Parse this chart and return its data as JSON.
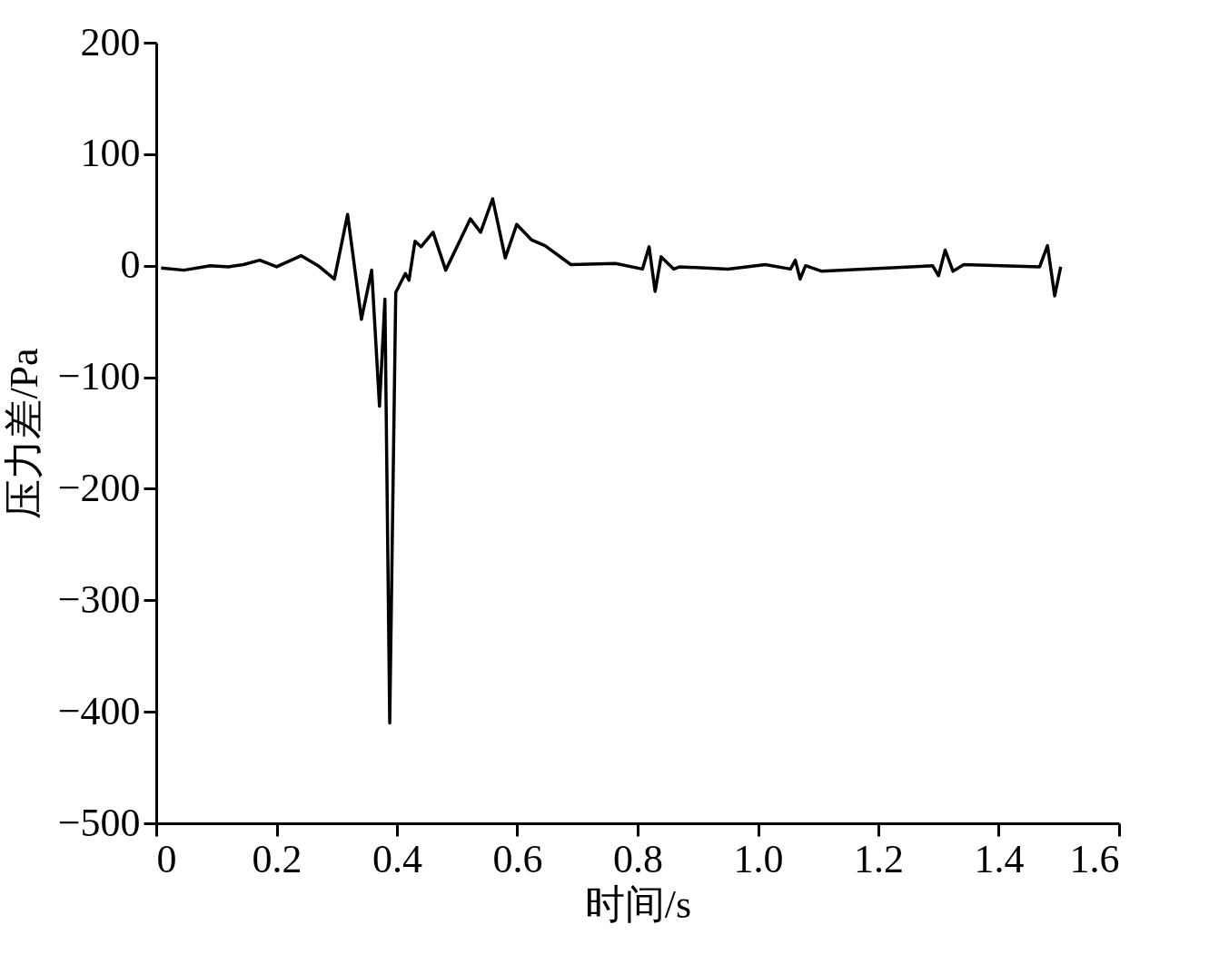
{
  "chart_data": {
    "type": "line",
    "xlabel": "时间/s",
    "ylabel": "压力差/Pa",
    "xlim": [
      0,
      1.6
    ],
    "xticks": [
      {
        "value": 0,
        "label": "0"
      },
      {
        "value": 0.2,
        "label": "0.2"
      },
      {
        "value": 0.4,
        "label": "0.4"
      },
      {
        "value": 0.6,
        "label": "0.6"
      },
      {
        "value": 0.8,
        "label": "0.8"
      },
      {
        "value": 1.0,
        "label": "1.0"
      },
      {
        "value": 1.2,
        "label": "1.2"
      },
      {
        "value": 1.4,
        "label": "1.4"
      },
      {
        "value": 1.6,
        "label": "1.6"
      }
    ],
    "ylim": [
      -500,
      200
    ],
    "yticks": [
      200,
      100,
      0,
      -100,
      -200,
      -300,
      -400,
      -500
    ],
    "grid": false,
    "marker": "none",
    "line_style": "solid",
    "series": [
      {
        "color": "#000000",
        "x": [
          0.008,
          0.046,
          0.09,
          0.12,
          0.145,
          0.172,
          0.2,
          0.241,
          0.269,
          0.296,
          0.318,
          0.341,
          0.358,
          0.371,
          0.38,
          0.388,
          0.398,
          0.414,
          0.42,
          0.43,
          0.44,
          0.46,
          0.481,
          0.522,
          0.539,
          0.559,
          0.58,
          0.599,
          0.624,
          0.646,
          0.689,
          0.763,
          0.808,
          0.819,
          0.829,
          0.839,
          0.86,
          0.87,
          0.95,
          1.012,
          1.054,
          1.062,
          1.07,
          1.079,
          1.106,
          1.29,
          1.3,
          1.311,
          1.324,
          1.342,
          1.468,
          1.481,
          1.493,
          1.503
        ],
        "values": [
          -2,
          -4,
          0,
          -1,
          1,
          5,
          -1,
          9,
          0,
          -12,
          46,
          -48,
          -4,
          -126,
          -30,
          -410,
          -24,
          -7,
          -13,
          22,
          17,
          30,
          -4,
          42,
          30,
          60,
          7,
          37,
          23,
          18,
          1,
          2,
          -3,
          17,
          -23,
          8,
          -3,
          -1,
          -3,
          1,
          -3,
          5,
          -12,
          0,
          -5,
          0,
          -9,
          14,
          -5,
          1,
          -1,
          18,
          -27,
          -1
        ]
      }
    ]
  }
}
